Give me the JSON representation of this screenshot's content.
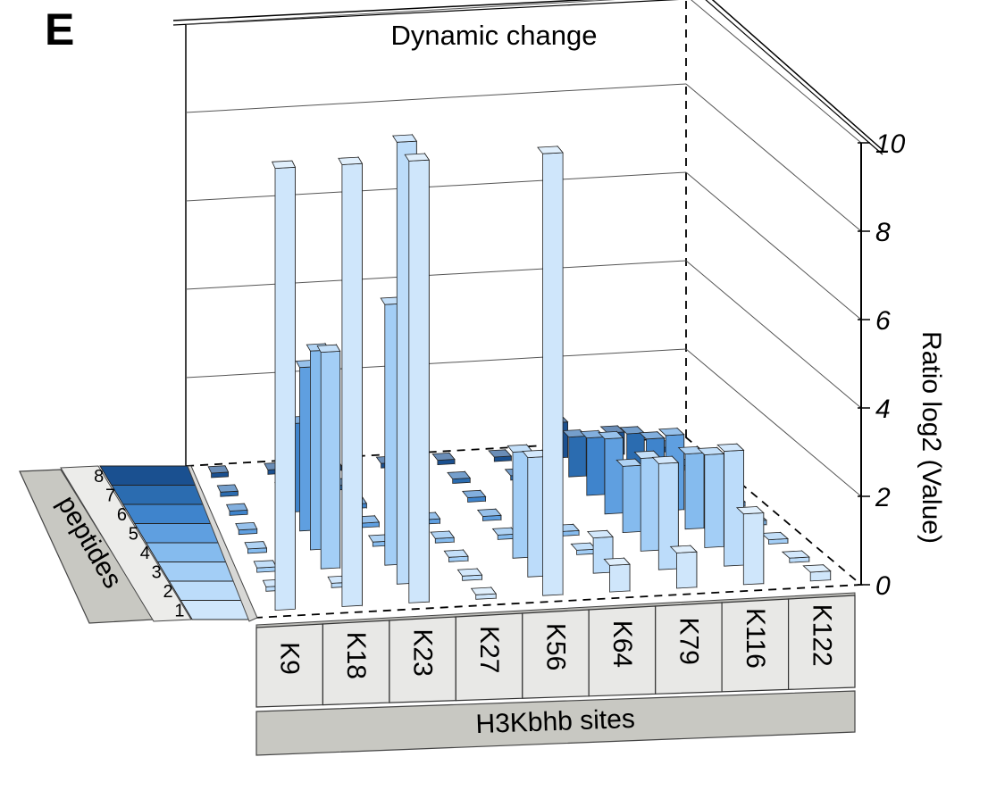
{
  "panel_label": "E",
  "chart_data": {
    "type": "bar",
    "title": "Dynamic change",
    "xlabel": "H3Kbhb sites",
    "ylabel": "Ratio log2 (Value)",
    "depth_label": "peptides",
    "categories": [
      "K9",
      "K18",
      "K23",
      "K27",
      "K56",
      "K64",
      "K79",
      "K116",
      "K122"
    ],
    "zlim": [
      0,
      10
    ],
    "z_ticks": [
      0,
      2,
      4,
      6,
      8,
      10
    ],
    "series": [
      {
        "name": "1",
        "color": "#cfe6fb",
        "values": [
          10.0,
          10.0,
          10.0,
          0.1,
          10.0,
          0.6,
          0.8,
          1.6,
          0.2
        ]
      },
      {
        "name": "2",
        "color": "#bcdcfa",
        "values": [
          0.1,
          0.1,
          10.0,
          0.1,
          2.7,
          0.8,
          2.4,
          2.6,
          0.1
        ]
      },
      {
        "name": "3",
        "color": "#a3cef6",
        "values": [
          0.1,
          4.9,
          5.9,
          0.1,
          2.4,
          0.1,
          2.1,
          2.1,
          0.1
        ]
      },
      {
        "name": "4",
        "color": "#85bbee",
        "values": [
          0.1,
          4.5,
          0.1,
          0.1,
          0.1,
          0.1,
          1.5,
          1.7,
          0.1
        ]
      },
      {
        "name": "5",
        "color": "#5f9fe0",
        "values": [
          0.1,
          3.7,
          0.1,
          0.1,
          0.1,
          0.1,
          1.7,
          1.7,
          0.1
        ]
      },
      {
        "name": "6",
        "color": "#3f84cc",
        "values": [
          0.1,
          2.0,
          0.1,
          0.1,
          0.1,
          0.1,
          1.3,
          1.2,
          0.1
        ]
      },
      {
        "name": "7",
        "color": "#2b6cb0",
        "values": [
          0.1,
          0.1,
          0.1,
          0.1,
          0.1,
          0.1,
          0.9,
          0.9,
          0.1
        ]
      },
      {
        "name": "8",
        "color": "#1a5090",
        "values": [
          0.1,
          0.1,
          0.1,
          0.1,
          0.1,
          0.1,
          0.8,
          0.5,
          0.1
        ]
      }
    ],
    "grid": true,
    "legend": "left"
  }
}
